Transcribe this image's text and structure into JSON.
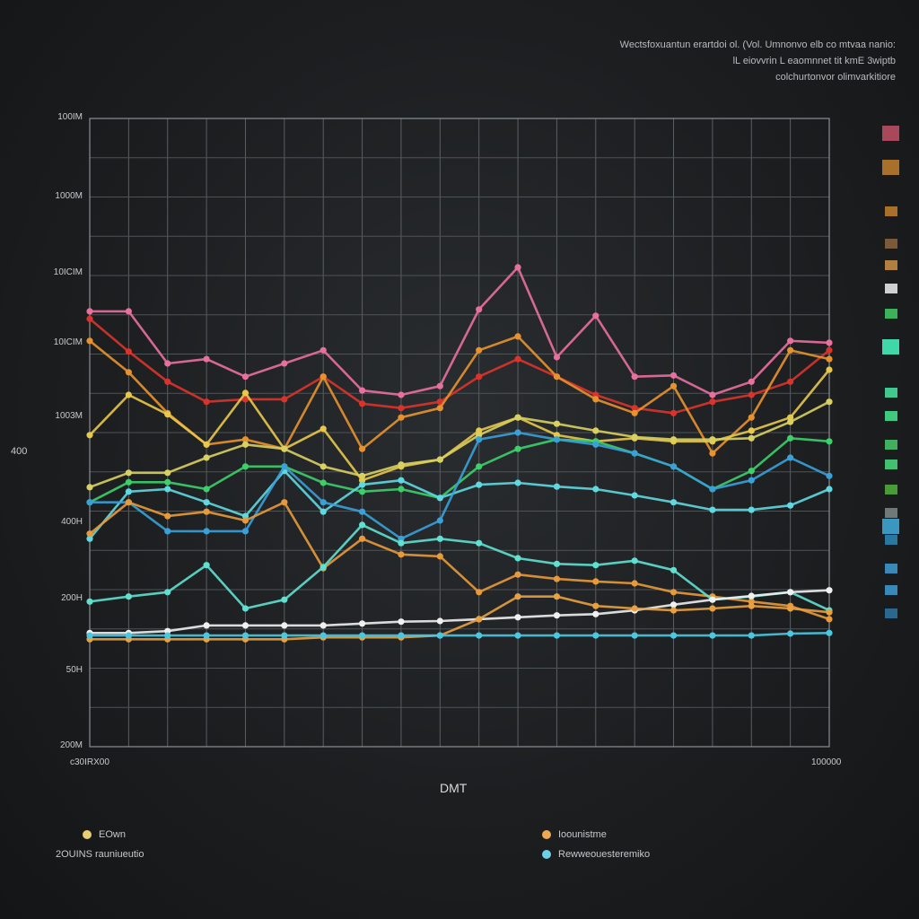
{
  "chart_data": {
    "type": "line",
    "subtitle_lines": [
      "Wectsfoxuantun erartdoi ol. (Vol. Umnonvo elb co mtvaa nanio:",
      "lL eiovvrin L eaomnnet tit kmE 3wiptb",
      "colchurtonvor olimvarkitiore"
    ],
    "xlabel": "DMT",
    "x_tick_labels": [
      "c30IRX00",
      "100000"
    ],
    "ylabel": "400",
    "y_tick_labels": [
      "100IM",
      "1000M",
      "10ICIM",
      "10ICIM",
      "1003M",
      "400H",
      "200H",
      "50H",
      "200M"
    ],
    "ylim": [
      0,
      100
    ],
    "x": [
      1,
      2,
      3,
      4,
      5,
      6,
      7,
      8,
      9,
      10,
      11,
      12,
      13,
      14,
      15,
      16,
      17,
      18,
      19,
      20
    ],
    "grid": true,
    "legend_position": "bottom",
    "series": [
      {
        "color": "#e8709e",
        "values": [
          69.3,
          69.3,
          61,
          61.7,
          58.9,
          61,
          63.1,
          56.7,
          56,
          57.4,
          69.6,
          76.3,
          62,
          68.6,
          58.9,
          59.1,
          56,
          58.1,
          64.6,
          64.3
        ]
      },
      {
        "color": "#d9342b",
        "values": [
          68.1,
          62.9,
          58.1,
          54.9,
          55.3,
          55.3,
          58.9,
          54.6,
          53.9,
          54.9,
          58.9,
          61.7,
          58.9,
          56,
          53.9,
          53.1,
          54.9,
          56,
          58.1,
          63.1
        ]
      },
      {
        "color": "#e8922e",
        "values": [
          64.6,
          59.6,
          53.1,
          48.1,
          48.9,
          47.4,
          58.9,
          47.4,
          52.4,
          53.9,
          63.1,
          65.3,
          58.9,
          55.3,
          53.1,
          57.4,
          46.7,
          52.4,
          63.1,
          61.7
        ]
      },
      {
        "color": "#e8c84a",
        "values": [
          49.6,
          56,
          52.9,
          48.1,
          56.3,
          47.4,
          50.6,
          42.4,
          44.6,
          45.7,
          50.3,
          52.4,
          49.6,
          48.6,
          49.1,
          48.6,
          48.6,
          50.3,
          52.4,
          60
        ]
      },
      {
        "color": "#d8d060",
        "values": [
          41.3,
          43.6,
          43.6,
          46,
          48.1,
          47.4,
          44.6,
          43.1,
          44.9,
          45.7,
          49.6,
          52.4,
          51.4,
          50.3,
          49.3,
          48.9,
          48.9,
          49.1,
          51.7,
          54.9
        ]
      },
      {
        "color": "#3ccf6a",
        "values": [
          38.9,
          42.1,
          42.1,
          41,
          44.6,
          44.6,
          42,
          40.6,
          41,
          39.6,
          44.6,
          47.4,
          48.9,
          48.6,
          46.7,
          44.6,
          41,
          43.9,
          49.1,
          48.6
        ]
      },
      {
        "color": "#5fd8e0",
        "values": [
          33.1,
          40.6,
          41,
          38.9,
          36.7,
          43.9,
          37.4,
          41.7,
          42.4,
          39.6,
          41.7,
          42,
          41.4,
          41,
          40,
          38.9,
          37.7,
          37.7,
          38.4,
          41
        ]
      },
      {
        "color": "#3aa0d8",
        "values": [
          38.9,
          38.9,
          34.3,
          34.3,
          34.3,
          44.6,
          38.9,
          37.4,
          33.1,
          36,
          48.9,
          50,
          48.9,
          48.1,
          46.7,
          44.6,
          41,
          42.4,
          46,
          43.1
        ]
      },
      {
        "color": "#e89a3a",
        "values": [
          33.9,
          38.9,
          36.7,
          37.4,
          36,
          38.9,
          28.4,
          33.1,
          30.6,
          30.3,
          24.6,
          27.4,
          26.7,
          26.3,
          26,
          24.6,
          23.9,
          23.1,
          22.4,
          20.3
        ]
      },
      {
        "color": "#5fe0d0",
        "values": [
          23.1,
          23.9,
          24.6,
          28.9,
          22,
          23.4,
          28.6,
          35.3,
          32.4,
          33.1,
          32.4,
          30,
          29.1,
          28.9,
          29.6,
          28.1,
          23.4,
          23.9,
          24.6,
          21.7
        ]
      },
      {
        "color": "#f0f0f0",
        "values": [
          18.1,
          18.1,
          18.4,
          19.3,
          19.3,
          19.3,
          19.3,
          19.6,
          19.9,
          20,
          20.3,
          20.6,
          20.9,
          21.1,
          21.7,
          22.6,
          23.4,
          24,
          24.6,
          24.9
        ]
      },
      {
        "color": "#e8a040",
        "values": [
          17.1,
          17.1,
          17.1,
          17.1,
          17.1,
          17.1,
          17.4,
          17.4,
          17.4,
          17.7,
          20.3,
          23.9,
          23.9,
          22.4,
          22,
          21.7,
          22,
          22.4,
          22,
          21.4
        ]
      },
      {
        "color": "#4ac8e0",
        "values": [
          17.7,
          17.7,
          17.7,
          17.7,
          17.7,
          17.7,
          17.7,
          17.7,
          17.7,
          17.7,
          17.7,
          17.7,
          17.7,
          17.7,
          17.7,
          17.7,
          17.7,
          17.7,
          18,
          18.1
        ]
      }
    ],
    "legend": [
      {
        "label": "EOwn",
        "color": "#e8d070"
      },
      {
        "label": "2OUINS rauniueutio",
        "color": ""
      },
      {
        "label": "Ioounistme",
        "color": "#f0a850"
      },
      {
        "label": "Rewweouesteremiko",
        "color": "#6cd0e8"
      }
    ],
    "side_swatches": [
      "#a8485a",
      "#a8702a",
      "#a8702a",
      "#7a5a3a",
      "#b08040",
      "#d0d0d0",
      "#3cb05a",
      "#40d8a8",
      "#40c890",
      "#40c880",
      "#40b060",
      "#40c070",
      "#4a9a3a",
      "#707878",
      "#3a98c0",
      "#2a78a0",
      "#3a88b8",
      "#3a88b8",
      "#2a6890"
    ]
  }
}
